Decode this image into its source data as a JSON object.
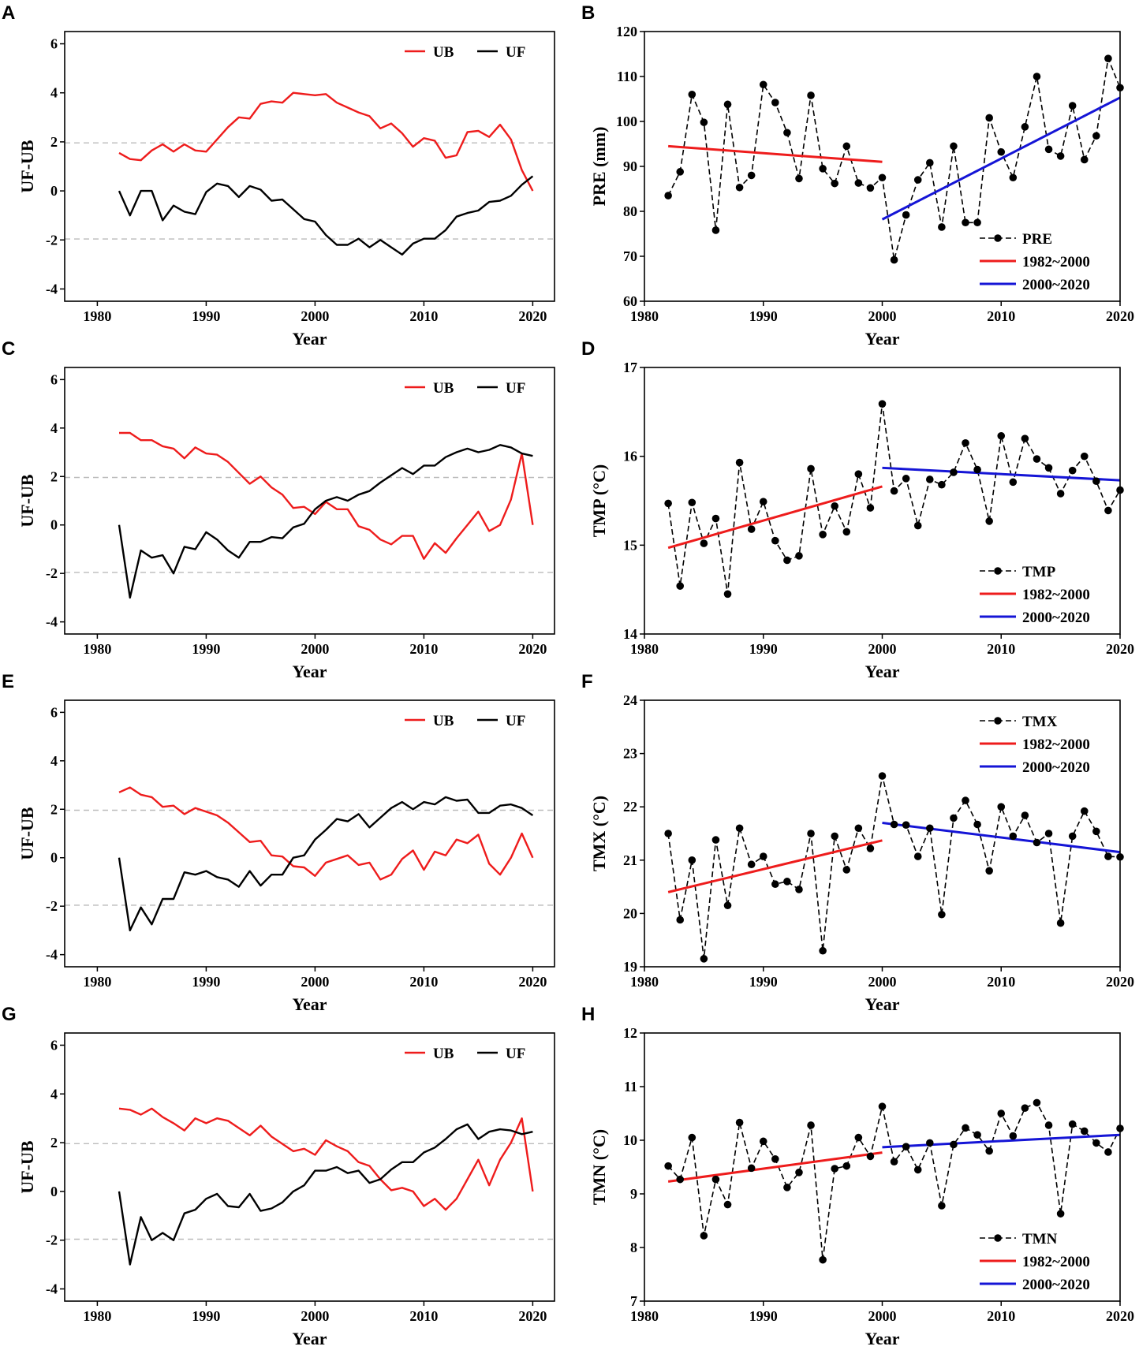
{
  "colors": {
    "ub": "#ee1c1c",
    "uf": "#000000",
    "fit1": "#ee1c1c",
    "fit2": "#1515d6",
    "grid": "#bbbbbb"
  },
  "chart_data": [
    {
      "id": "A",
      "type": "line",
      "xlabel": "Year",
      "ylabel": "UF-UB",
      "xlim": [
        1977,
        2022
      ],
      "ylim": [
        -4.5,
        6.5
      ],
      "xticks": [
        1980,
        1990,
        2000,
        2010,
        2020
      ],
      "yticks": [
        -4,
        -2,
        0,
        2,
        4,
        6
      ],
      "thresholds": [
        1.96,
        -1.96
      ],
      "legend_loc": "top-right",
      "x": [
        1982,
        1983,
        1984,
        1985,
        1986,
        1987,
        1988,
        1989,
        1990,
        1991,
        1992,
        1993,
        1994,
        1995,
        1996,
        1997,
        1998,
        1999,
        2000,
        2001,
        2002,
        2003,
        2004,
        2005,
        2006,
        2007,
        2008,
        2009,
        2010,
        2011,
        2012,
        2013,
        2014,
        2015,
        2016,
        2017,
        2018,
        2019,
        2020
      ],
      "series": [
        {
          "name": "UB",
          "values": [
            1.55,
            1.3,
            1.25,
            1.65,
            1.9,
            1.6,
            1.9,
            1.65,
            1.6,
            2.1,
            2.6,
            3.0,
            2.95,
            3.55,
            3.65,
            3.6,
            4.0,
            3.95,
            3.9,
            3.95,
            3.6,
            3.4,
            3.2,
            3.05,
            2.55,
            2.75,
            2.35,
            1.8,
            2.15,
            2.05,
            1.35,
            1.45,
            2.4,
            2.45,
            2.2,
            2.7,
            2.1,
            0.85,
            0.0
          ]
        },
        {
          "name": "UF",
          "values": [
            0.0,
            -1.0,
            0.0,
            0.0,
            -1.2,
            -0.6,
            -0.85,
            -0.95,
            -0.05,
            0.3,
            0.2,
            -0.25,
            0.2,
            0.05,
            -0.4,
            -0.35,
            -0.75,
            -1.15,
            -1.25,
            -1.8,
            -2.2,
            -2.2,
            -1.95,
            -2.3,
            -2.0,
            -2.3,
            -2.6,
            -2.15,
            -1.95,
            -1.95,
            -1.6,
            -1.05,
            -0.9,
            -0.8,
            -0.45,
            -0.4,
            -0.2,
            0.25,
            0.6
          ]
        }
      ]
    },
    {
      "id": "B",
      "type": "line",
      "xlabel": "Year",
      "ylabel": "PRE (mm)",
      "xlim": [
        1980,
        2020
      ],
      "ylim": [
        60,
        120
      ],
      "xticks": [
        1980,
        1990,
        2000,
        2010,
        2020
      ],
      "yticks": [
        60,
        70,
        80,
        90,
        100,
        110,
        120
      ],
      "legend_loc": "bottom-right",
      "legend": [
        "PRE",
        "1982~2000",
        "2000~2020"
      ],
      "x": [
        1982,
        1983,
        1984,
        1985,
        1986,
        1987,
        1988,
        1989,
        1990,
        1991,
        1992,
        1993,
        1994,
        1995,
        1996,
        1997,
        1998,
        1999,
        2000,
        2001,
        2002,
        2003,
        2004,
        2005,
        2006,
        2007,
        2008,
        2009,
        2010,
        2011,
        2012,
        2013,
        2014,
        2015,
        2016,
        2017,
        2018,
        2019,
        2020
      ],
      "values": [
        83.5,
        88.8,
        106.0,
        99.8,
        75.8,
        103.8,
        85.3,
        88.0,
        108.2,
        104.2,
        97.5,
        87.3,
        105.8,
        89.5,
        86.2,
        94.5,
        86.3,
        85.2,
        87.5,
        69.2,
        79.2,
        87.0,
        90.8,
        76.5,
        94.5,
        77.5,
        77.5,
        100.8,
        93.2,
        87.5,
        98.8,
        110.0,
        93.8,
        92.3,
        103.5,
        91.5,
        96.8,
        114.0,
        107.5
      ],
      "fits": [
        {
          "name": "1982~2000",
          "x": [
            1982,
            2000
          ],
          "y": [
            94.5,
            91.0
          ]
        },
        {
          "name": "2000~2020",
          "x": [
            2000,
            2020
          ],
          "y": [
            78.2,
            105.3
          ]
        }
      ]
    },
    {
      "id": "C",
      "type": "line",
      "xlabel": "Year",
      "ylabel": "UF-UB",
      "xlim": [
        1977,
        2022
      ],
      "ylim": [
        -4.5,
        6.5
      ],
      "xticks": [
        1980,
        1990,
        2000,
        2010,
        2020
      ],
      "yticks": [
        -4,
        -2,
        0,
        2,
        4,
        6
      ],
      "thresholds": [
        1.96,
        -1.96
      ],
      "legend_loc": "top-right",
      "x": [
        1982,
        1983,
        1984,
        1985,
        1986,
        1987,
        1988,
        1989,
        1990,
        1991,
        1992,
        1993,
        1994,
        1995,
        1996,
        1997,
        1998,
        1999,
        2000,
        2001,
        2002,
        2003,
        2004,
        2005,
        2006,
        2007,
        2008,
        2009,
        2010,
        2011,
        2012,
        2013,
        2014,
        2015,
        2016,
        2017,
        2018,
        2019,
        2020
      ],
      "series": [
        {
          "name": "UB",
          "values": [
            3.8,
            3.8,
            3.5,
            3.5,
            3.25,
            3.15,
            2.75,
            3.2,
            2.95,
            2.9,
            2.6,
            2.15,
            1.7,
            2.0,
            1.55,
            1.25,
            0.7,
            0.75,
            0.45,
            0.95,
            0.65,
            0.65,
            -0.05,
            -0.2,
            -0.6,
            -0.8,
            -0.45,
            -0.45,
            -1.4,
            -0.75,
            -1.15,
            -0.55,
            0.0,
            0.55,
            -0.25,
            0.0,
            1.05,
            2.95,
            0.0
          ]
        },
        {
          "name": "UF",
          "values": [
            0.0,
            -3.0,
            -1.05,
            -1.35,
            -1.25,
            -2.0,
            -0.9,
            -1.0,
            -0.3,
            -0.6,
            -1.05,
            -1.35,
            -0.7,
            -0.7,
            -0.5,
            -0.55,
            -0.1,
            0.05,
            0.65,
            1.0,
            1.15,
            1.0,
            1.25,
            1.4,
            1.75,
            2.05,
            2.35,
            2.1,
            2.45,
            2.45,
            2.8,
            3.0,
            3.15,
            3.0,
            3.1,
            3.3,
            3.2,
            2.95,
            2.85
          ]
        }
      ]
    },
    {
      "id": "D",
      "type": "line",
      "xlabel": "Year",
      "ylabel": "TMP (°C)",
      "xlim": [
        1980,
        2020
      ],
      "ylim": [
        14,
        17
      ],
      "xticks": [
        1980,
        1990,
        2000,
        2010,
        2020
      ],
      "yticks": [
        14,
        15,
        16,
        17
      ],
      "legend_loc": "bottom-right",
      "legend": [
        "TMP",
        "1982~2000",
        "2000~2020"
      ],
      "x": [
        1982,
        1983,
        1984,
        1985,
        1986,
        1987,
        1988,
        1989,
        1990,
        1991,
        1992,
        1993,
        1994,
        1995,
        1996,
        1997,
        1998,
        1999,
        2000,
        2001,
        2002,
        2003,
        2004,
        2005,
        2006,
        2007,
        2008,
        2009,
        2010,
        2011,
        2012,
        2013,
        2014,
        2015,
        2016,
        2017,
        2018,
        2019,
        2020
      ],
      "values": [
        15.47,
        14.54,
        15.48,
        15.02,
        15.3,
        14.45,
        15.93,
        15.18,
        15.49,
        15.05,
        14.83,
        14.88,
        15.86,
        15.12,
        15.44,
        15.15,
        15.8,
        15.42,
        16.59,
        15.61,
        15.75,
        15.22,
        15.74,
        15.68,
        15.82,
        16.15,
        15.85,
        15.27,
        16.23,
        15.71,
        16.2,
        15.97,
        15.87,
        15.58,
        15.84,
        16.0,
        15.72,
        15.39,
        15.62
      ],
      "fits": [
        {
          "name": "1982~2000",
          "x": [
            1982,
            2000
          ],
          "y": [
            14.97,
            15.66
          ]
        },
        {
          "name": "2000~2020",
          "x": [
            2000,
            2020
          ],
          "y": [
            15.87,
            15.73
          ]
        }
      ]
    },
    {
      "id": "E",
      "type": "line",
      "xlabel": "Year",
      "ylabel": "UF-UB",
      "xlim": [
        1977,
        2022
      ],
      "ylim": [
        -4.5,
        6.5
      ],
      "xticks": [
        1980,
        1990,
        2000,
        2010,
        2020
      ],
      "yticks": [
        -4,
        -2,
        0,
        2,
        4,
        6
      ],
      "thresholds": [
        1.96,
        -1.96
      ],
      "legend_loc": "top-right",
      "x": [
        1982,
        1983,
        1984,
        1985,
        1986,
        1987,
        1988,
        1989,
        1990,
        1991,
        1992,
        1993,
        1994,
        1995,
        1996,
        1997,
        1998,
        1999,
        2000,
        2001,
        2002,
        2003,
        2004,
        2005,
        2006,
        2007,
        2008,
        2009,
        2010,
        2011,
        2012,
        2013,
        2014,
        2015,
        2016,
        2017,
        2018,
        2019,
        2020
      ],
      "series": [
        {
          "name": "UB",
          "values": [
            2.7,
            2.9,
            2.6,
            2.5,
            2.1,
            2.15,
            1.8,
            2.05,
            1.9,
            1.75,
            1.45,
            1.05,
            0.65,
            0.7,
            0.1,
            0.05,
            -0.35,
            -0.4,
            -0.75,
            -0.2,
            -0.05,
            0.1,
            -0.3,
            -0.2,
            -0.9,
            -0.7,
            -0.05,
            0.3,
            -0.5,
            0.25,
            0.1,
            0.75,
            0.6,
            0.95,
            -0.25,
            -0.7,
            0.0,
            1.0,
            0.0
          ]
        },
        {
          "name": "UF",
          "values": [
            0.0,
            -3.0,
            -2.05,
            -2.75,
            -1.7,
            -1.7,
            -0.6,
            -0.7,
            -0.55,
            -0.8,
            -0.9,
            -1.2,
            -0.55,
            -1.15,
            -0.7,
            -0.7,
            0.0,
            0.1,
            0.75,
            1.15,
            1.6,
            1.5,
            1.8,
            1.25,
            1.65,
            2.05,
            2.3,
            2.0,
            2.3,
            2.2,
            2.5,
            2.35,
            2.4,
            1.85,
            1.85,
            2.15,
            2.2,
            2.05,
            1.75
          ]
        }
      ]
    },
    {
      "id": "F",
      "type": "line",
      "xlabel": "Year",
      "ylabel": "TMX (°C)",
      "xlim": [
        1980,
        2020
      ],
      "ylim": [
        19,
        24
      ],
      "xticks": [
        1980,
        1990,
        2000,
        2010,
        2020
      ],
      "yticks": [
        19,
        20,
        21,
        22,
        23,
        24
      ],
      "legend_loc": "top-right",
      "legend": [
        "TMX",
        "1982~2000",
        "2000~2020"
      ],
      "x": [
        1982,
        1983,
        1984,
        1985,
        1986,
        1987,
        1988,
        1989,
        1990,
        1991,
        1992,
        1993,
        1994,
        1995,
        1996,
        1997,
        1998,
        1999,
        2000,
        2001,
        2002,
        2003,
        2004,
        2005,
        2006,
        2007,
        2008,
        2009,
        2010,
        2011,
        2012,
        2013,
        2014,
        2015,
        2016,
        2017,
        2018,
        2019,
        2020
      ],
      "values": [
        21.5,
        19.88,
        21.0,
        19.15,
        21.38,
        20.15,
        21.6,
        20.92,
        21.07,
        20.55,
        20.6,
        20.45,
        21.5,
        19.3,
        21.45,
        20.82,
        21.6,
        21.22,
        22.58,
        21.67,
        21.66,
        21.07,
        21.6,
        19.98,
        21.79,
        22.12,
        21.67,
        20.8,
        22.0,
        21.45,
        21.84,
        21.33,
        21.5,
        19.82,
        21.45,
        21.92,
        21.54,
        21.07,
        21.06
      ],
      "fits": [
        {
          "name": "1982~2000",
          "x": [
            1982,
            2000
          ],
          "y": [
            20.4,
            21.37
          ]
        },
        {
          "name": "2000~2020",
          "x": [
            2000,
            2020
          ],
          "y": [
            21.7,
            21.15
          ]
        }
      ]
    },
    {
      "id": "G",
      "type": "line",
      "xlabel": "Year",
      "ylabel": "UF-UB",
      "xlim": [
        1977,
        2022
      ],
      "ylim": [
        -4.5,
        6.5
      ],
      "xticks": [
        1980,
        1990,
        2000,
        2010,
        2020
      ],
      "yticks": [
        -4,
        -2,
        0,
        2,
        4,
        6
      ],
      "thresholds": [
        1.96,
        -1.96
      ],
      "legend_loc": "top-right",
      "x": [
        1982,
        1983,
        1984,
        1985,
        1986,
        1987,
        1988,
        1989,
        1990,
        1991,
        1992,
        1993,
        1994,
        1995,
        1996,
        1997,
        1998,
        1999,
        2000,
        2001,
        2002,
        2003,
        2004,
        2005,
        2006,
        2007,
        2008,
        2009,
        2010,
        2011,
        2012,
        2013,
        2014,
        2015,
        2016,
        2017,
        2018,
        2019,
        2020
      ],
      "series": [
        {
          "name": "UB",
          "values": [
            3.4,
            3.35,
            3.15,
            3.4,
            3.05,
            2.8,
            2.5,
            3.0,
            2.8,
            3.0,
            2.9,
            2.6,
            2.3,
            2.7,
            2.25,
            1.95,
            1.65,
            1.75,
            1.5,
            2.1,
            1.85,
            1.65,
            1.2,
            1.05,
            0.5,
            0.05,
            0.15,
            0.0,
            -0.6,
            -0.3,
            -0.75,
            -0.3,
            0.5,
            1.3,
            0.25,
            1.3,
            2.0,
            3.0,
            0.0
          ]
        },
        {
          "name": "UF",
          "values": [
            0.0,
            -3.0,
            -1.05,
            -2.0,
            -1.7,
            -2.0,
            -0.9,
            -0.75,
            -0.3,
            -0.1,
            -0.6,
            -0.65,
            -0.1,
            -0.8,
            -0.7,
            -0.45,
            0.0,
            0.25,
            0.85,
            0.85,
            1.0,
            0.75,
            0.85,
            0.35,
            0.5,
            0.9,
            1.2,
            1.2,
            1.6,
            1.8,
            2.15,
            2.55,
            2.75,
            2.15,
            2.45,
            2.55,
            2.5,
            2.35,
            2.45
          ]
        }
      ]
    },
    {
      "id": "H",
      "type": "line",
      "xlabel": "Year",
      "ylabel": "TMN (°C)",
      "xlim": [
        1980,
        2020
      ],
      "ylim": [
        7,
        12
      ],
      "xticks": [
        1980,
        1990,
        2000,
        2010,
        2020
      ],
      "yticks": [
        7,
        8,
        9,
        10,
        11,
        12
      ],
      "legend_loc": "bottom-right",
      "legend": [
        "TMN",
        "1982~2000",
        "2000~2020"
      ],
      "x": [
        1982,
        1983,
        1984,
        1985,
        1986,
        1987,
        1988,
        1989,
        1990,
        1991,
        1992,
        1993,
        1994,
        1995,
        1996,
        1997,
        1998,
        1999,
        2000,
        2001,
        2002,
        2003,
        2004,
        2005,
        2006,
        2007,
        2008,
        2009,
        2010,
        2011,
        2012,
        2013,
        2014,
        2015,
        2016,
        2017,
        2018,
        2019,
        2020
      ],
      "values": [
        9.52,
        9.27,
        10.05,
        8.22,
        9.27,
        8.8,
        10.33,
        9.48,
        9.98,
        9.65,
        9.12,
        9.4,
        10.28,
        7.77,
        9.47,
        9.52,
        10.05,
        9.7,
        10.63,
        9.6,
        9.88,
        9.45,
        9.95,
        8.78,
        9.92,
        10.23,
        10.1,
        9.8,
        10.5,
        10.08,
        10.6,
        10.7,
        10.28,
        8.63,
        10.3,
        10.17,
        9.95,
        9.78,
        10.22
      ],
      "fits": [
        {
          "name": "1982~2000",
          "x": [
            1982,
            2000
          ],
          "y": [
            9.23,
            9.77
          ]
        },
        {
          "name": "2000~2020",
          "x": [
            2000,
            2020
          ],
          "y": [
            9.87,
            10.1
          ]
        }
      ]
    }
  ]
}
